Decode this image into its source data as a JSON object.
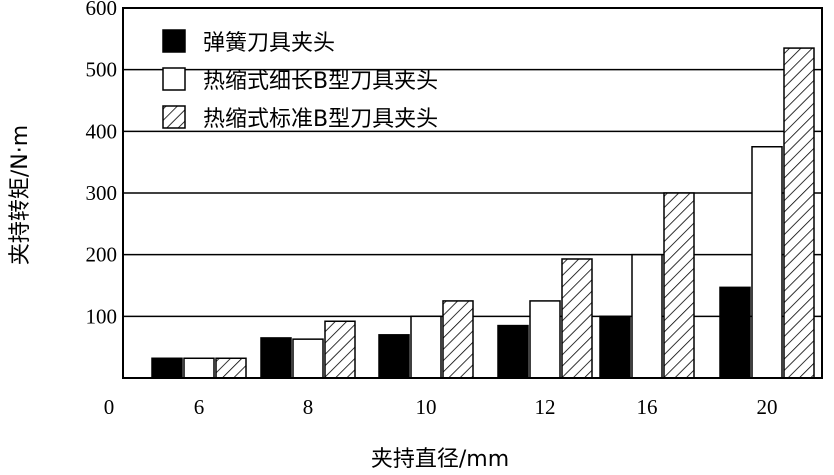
{
  "chart_data": {
    "type": "bar",
    "title": "",
    "xlabel": "夹持直径/mm",
    "ylabel": "夹持转矩/N·m",
    "origin_label": "0",
    "categories": [
      "6",
      "8",
      "10",
      "12",
      "16",
      "20"
    ],
    "ylim": [
      0,
      600
    ],
    "yticks": [
      100,
      200,
      300,
      400,
      500,
      600
    ],
    "grid": true,
    "legend_position": "top-left",
    "series": [
      {
        "name": "弹簧刀具夹头",
        "fill": "solid",
        "values": [
          32,
          65,
          70,
          85,
          100,
          147
        ]
      },
      {
        "name": "热缩式细长B型刀具夹头",
        "fill": "empty",
        "values": [
          32,
          63,
          100,
          125,
          200,
          375
        ]
      },
      {
        "name": "热缩式标准B型刀具夹头",
        "fill": "hatch",
        "values": [
          32,
          92,
          125,
          193,
          300,
          535
        ]
      }
    ]
  }
}
